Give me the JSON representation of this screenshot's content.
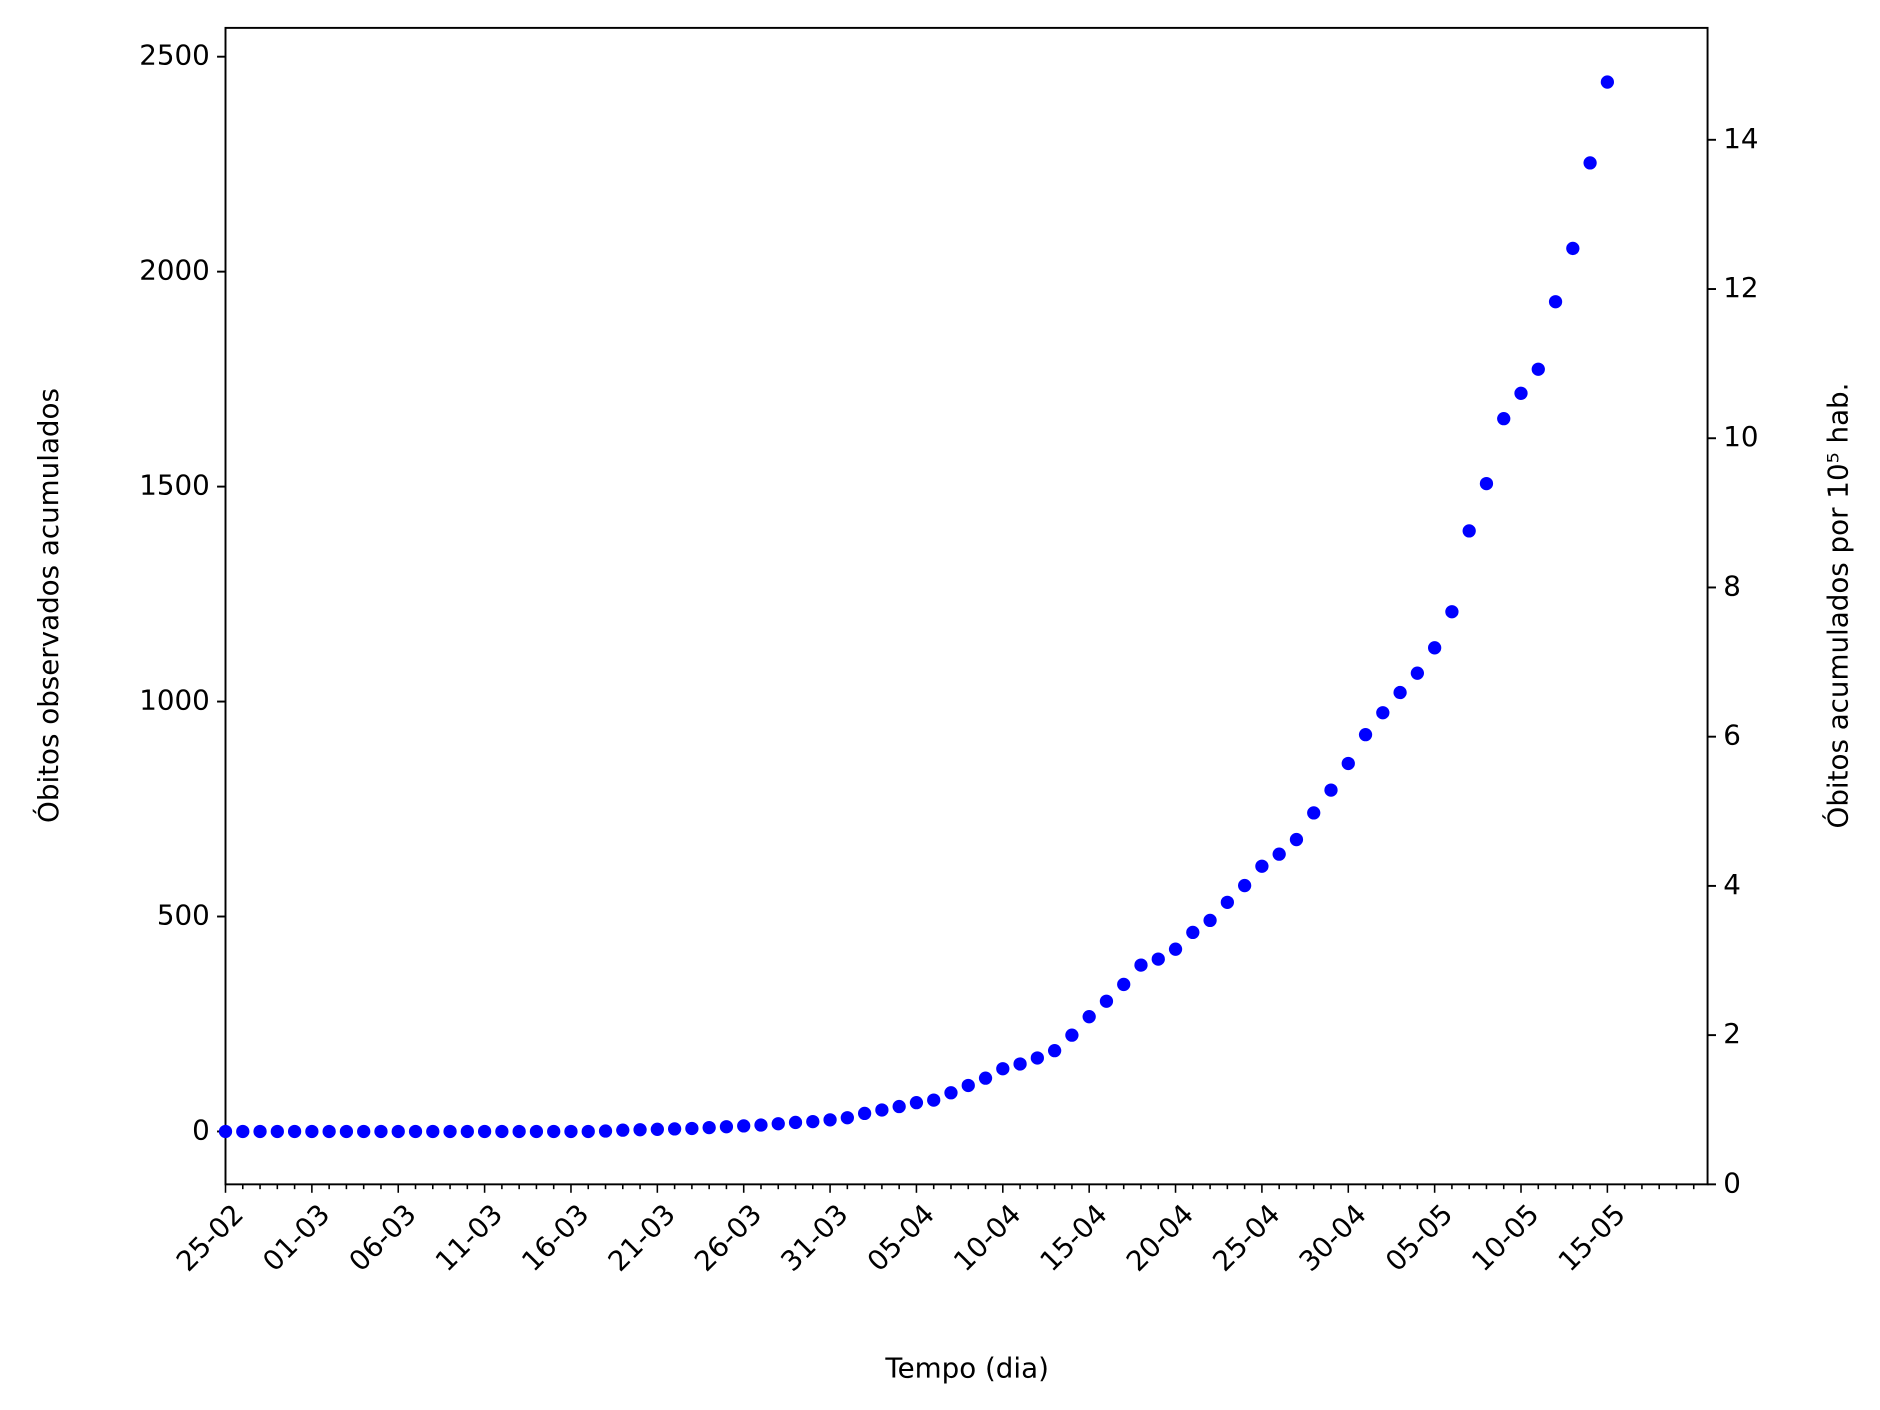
{
  "chart_data": {
    "type": "scatter",
    "x_label": "Tempo (dia)",
    "y_label": "Óbitos observados acumulados",
    "y2_label": "Óbitos acumulados por 10⁵ hab.",
    "categories": [
      "25-02",
      null,
      null,
      null,
      null,
      "01-03",
      null,
      null,
      null,
      null,
      "06-03",
      null,
      null,
      null,
      null,
      "11-03",
      null,
      null,
      null,
      null,
      "16-03",
      null,
      null,
      null,
      null,
      "21-03",
      null,
      null,
      null,
      null,
      "26-03",
      null,
      null,
      null,
      null,
      "31-03",
      null,
      null,
      null,
      null,
      "05-04",
      null,
      null,
      null,
      null,
      "10-04",
      null,
      null,
      null,
      null,
      "15-04",
      null,
      null,
      null,
      null,
      "20-04",
      null,
      null,
      null,
      null,
      "25-04",
      null,
      null,
      null,
      null,
      "30-04",
      null,
      null,
      null,
      null,
      "05-05",
      null,
      null,
      null,
      null,
      "10-05",
      null,
      null,
      null,
      null,
      "15-05",
      null,
      null,
      null,
      null,
      null
    ],
    "series": [
      {
        "color": "#0000ff",
        "values": [
          0,
          0,
          0,
          0,
          0,
          0,
          0,
          0,
          0,
          0,
          0,
          0,
          0,
          0,
          0,
          0,
          0,
          0,
          0,
          0,
          0,
          0,
          1,
          3,
          4,
          5,
          6,
          7,
          9,
          11,
          13,
          15,
          18,
          21,
          23,
          27,
          32,
          42,
          50,
          58,
          67,
          73,
          90,
          107,
          124,
          146,
          157,
          171,
          188,
          224,
          267,
          303,
          342,
          387,
          401,
          424,
          463,
          491,
          533,
          572,
          617,
          645,
          679,
          741,
          794,
          856,
          923,
          974,
          1021,
          1066,
          1125,
          1209,
          1397,
          1507,
          1658,
          1717,
          1773,
          1930,
          2054,
          2253,
          2441,
          null,
          null,
          null,
          null,
          null
        ]
      }
    ],
    "ylim": [
      -123,
      2567
    ],
    "yticks": [
      0,
      500,
      1000,
      1500,
      2000,
      2500
    ],
    "y2lim": [
      0,
      15.5
    ],
    "y2ticks": [
      0,
      2,
      4,
      6,
      8,
      10,
      12,
      14
    ]
  }
}
